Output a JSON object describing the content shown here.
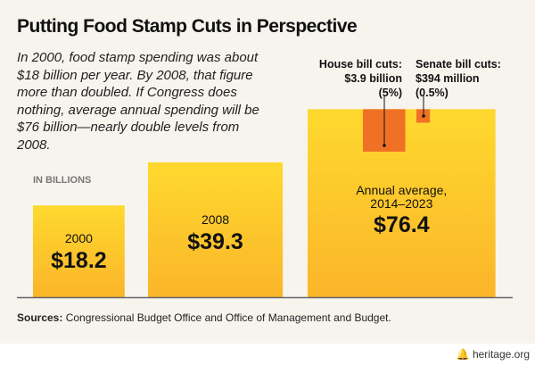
{
  "header": {
    "title": "Putting Food Stamp Cuts in Perspective",
    "intro": "In 2000, food stamp spending was about $18 billion per year. By 2008, that figure more than doubled. If Congress does nothing, average annual spending will be $76 billion—nearly double levels from 2008."
  },
  "chart_data": {
    "type": "bar",
    "encoding": "square area proportional to value",
    "unit_label": "IN BILLIONS",
    "categories": [
      "2000",
      "2008",
      "Annual average, 2014–2023"
    ],
    "values": [
      18.2,
      39.3,
      76.4
    ],
    "value_labels": [
      "$18.2",
      "$39.3",
      "$76.4"
    ],
    "cuts": [
      {
        "name": "House bill cuts:",
        "amount_label": "$3.9 billion",
        "pct_label": "(5%)",
        "value": 3.9
      },
      {
        "name": "Senate bill cuts:",
        "amount_label": "$394 million",
        "pct_label": "(0.5%)",
        "value": 0.394
      }
    ],
    "colors": {
      "bar_top": "#fed92e",
      "bar_bottom": "#fbb52a",
      "cut": "#f07125",
      "axis": "#666666"
    }
  },
  "footer": {
    "sources_label": "Sources:",
    "sources_text": " Congressional Budget Office and Office of Management and Budget.",
    "logo": "heritage.org"
  }
}
